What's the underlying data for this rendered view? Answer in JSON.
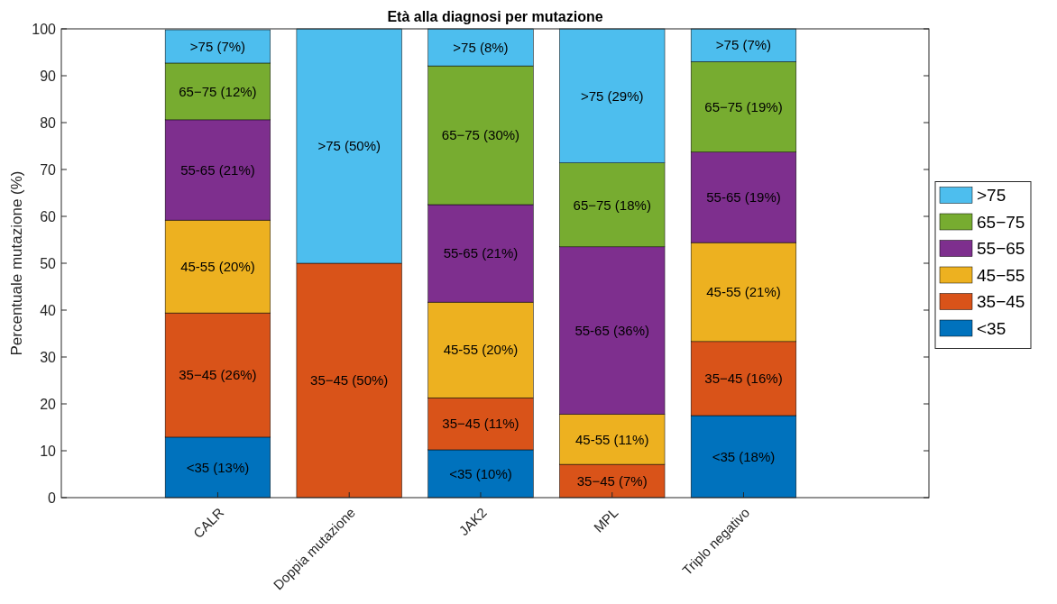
{
  "chart_data": {
    "type": "bar",
    "stacked": true,
    "title": "Età alla diagnosi per mutazione",
    "ylabel": "Percentuale mutazione (%)",
    "categories": [
      null,
      "CALR",
      "Doppia mutazione",
      "JAK2",
      "MPL",
      "Triplo negativo"
    ],
    "ylim": [
      0,
      100
    ],
    "yticks": [
      0,
      10,
      20,
      30,
      40,
      50,
      60,
      70,
      80,
      90,
      100
    ],
    "grid": false,
    "legend": "right",
    "series": [
      {
        "name": "<35",
        "color": "#0072bd",
        "values": [
          null,
          12.9,
          0,
          10.2,
          0,
          17.5
        ],
        "value_labels": [
          null,
          "<35 (13%)",
          null,
          "<35 (10%)",
          null,
          "<35 (18%)"
        ]
      },
      {
        "name": "35−45",
        "color": "#d95319",
        "values": [
          null,
          26.5,
          50,
          11.1,
          7.1,
          15.8
        ],
        "value_labels": [
          null,
          "35−45 (26%)",
          "35−45 (50%)",
          "35−45 (11%)",
          "35−45 (7%)",
          "35−45 (16%)"
        ]
      },
      {
        "name": "45−55",
        "color": "#edb120",
        "values": [
          null,
          19.8,
          0,
          20.4,
          10.7,
          21.1
        ],
        "value_labels": [
          null,
          "45-55 (20%)",
          null,
          "45-55 (20%)",
          "45-55 (11%)",
          "45-55 (21%)"
        ]
      },
      {
        "name": "55−65",
        "color": "#7e2f8e",
        "values": [
          null,
          21.4,
          0,
          20.8,
          35.7,
          19.3
        ],
        "value_labels": [
          null,
          "55-65 (21%)",
          null,
          "55-65 (21%)",
          "55-65 (36%)",
          "55-65 (19%)"
        ]
      },
      {
        "name": "65−75",
        "color": "#77ac30",
        "values": [
          null,
          12.1,
          0,
          29.6,
          17.9,
          19.3
        ],
        "value_labels": [
          null,
          "65−75 (12%)",
          null,
          "65−75 (30%)",
          "65−75 (18%)",
          "65−75 (19%)"
        ]
      },
      {
        "name": ">75",
        "color": "#4dbeee",
        "values": [
          null,
          7.1,
          50,
          7.9,
          28.6,
          7.0
        ],
        "value_labels": [
          null,
          ">75 (7%)",
          ">75 (50%)",
          ">75 (8%)",
          ">75 (29%)",
          ">75 (7%)"
        ]
      }
    ]
  }
}
